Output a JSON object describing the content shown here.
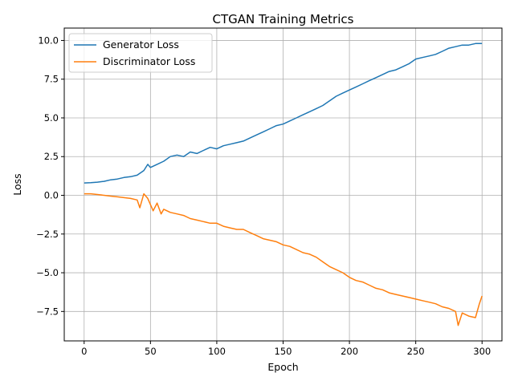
{
  "chart_data": {
    "type": "line",
    "title": "CTGAN Training Metrics",
    "xlabel": "Epoch",
    "ylabel": "Loss",
    "xlim": [
      -15,
      315
    ],
    "ylim": [
      -9.4,
      10.8
    ],
    "xticks": [
      0,
      50,
      100,
      150,
      200,
      250,
      300
    ],
    "yticks": [
      -7.5,
      -5.0,
      -2.5,
      0.0,
      2.5,
      5.0,
      7.5,
      10.0
    ],
    "xtick_labels": [
      "0",
      "50",
      "100",
      "150",
      "200",
      "250",
      "300"
    ],
    "ytick_labels": [
      "−7.5",
      "−5.0",
      "−2.5",
      "0.0",
      "2.5",
      "5.0",
      "7.5",
      "10.0"
    ],
    "grid": true,
    "legend_position": "upper-left",
    "series": [
      {
        "name": "Generator Loss",
        "color": "#1f77b4",
        "x": [
          0,
          5,
          10,
          15,
          20,
          25,
          30,
          35,
          40,
          45,
          48,
          50,
          55,
          60,
          65,
          70,
          75,
          80,
          85,
          90,
          95,
          100,
          105,
          110,
          115,
          120,
          125,
          130,
          135,
          140,
          145,
          150,
          155,
          160,
          165,
          170,
          175,
          180,
          185,
          190,
          195,
          200,
          205,
          210,
          215,
          220,
          225,
          230,
          235,
          240,
          245,
          250,
          255,
          260,
          265,
          270,
          275,
          280,
          285,
          290,
          295,
          300
        ],
        "y": [
          0.8,
          0.82,
          0.85,
          0.9,
          1.0,
          1.05,
          1.15,
          1.2,
          1.3,
          1.6,
          2.0,
          1.8,
          2.0,
          2.2,
          2.5,
          2.6,
          2.5,
          2.8,
          2.7,
          2.9,
          3.1,
          3.0,
          3.2,
          3.3,
          3.4,
          3.5,
          3.7,
          3.9,
          4.1,
          4.3,
          4.5,
          4.6,
          4.8,
          5.0,
          5.2,
          5.4,
          5.6,
          5.8,
          6.1,
          6.4,
          6.6,
          6.8,
          7.0,
          7.2,
          7.4,
          7.6,
          7.8,
          8.0,
          8.1,
          8.3,
          8.5,
          8.8,
          8.9,
          9.0,
          9.1,
          9.3,
          9.5,
          9.6,
          9.7,
          9.7,
          9.8,
          9.8
        ]
      },
      {
        "name": "Discriminator Loss",
        "color": "#ff7f0e",
        "x": [
          0,
          5,
          10,
          15,
          20,
          25,
          30,
          35,
          40,
          42,
          45,
          48,
          50,
          52,
          55,
          58,
          60,
          65,
          70,
          75,
          80,
          85,
          90,
          95,
          100,
          105,
          110,
          115,
          120,
          125,
          130,
          135,
          140,
          145,
          150,
          155,
          160,
          165,
          170,
          175,
          180,
          185,
          190,
          195,
          200,
          205,
          210,
          215,
          220,
          225,
          230,
          235,
          240,
          245,
          250,
          255,
          260,
          265,
          270,
          275,
          280,
          282,
          285,
          290,
          295,
          298,
          300
        ],
        "y": [
          0.1,
          0.1,
          0.05,
          0.0,
          -0.05,
          -0.1,
          -0.15,
          -0.2,
          -0.3,
          -0.8,
          0.1,
          -0.2,
          -0.6,
          -1.0,
          -0.5,
          -1.2,
          -0.9,
          -1.1,
          -1.2,
          -1.3,
          -1.5,
          -1.6,
          -1.7,
          -1.8,
          -1.8,
          -2.0,
          -2.1,
          -2.2,
          -2.2,
          -2.4,
          -2.6,
          -2.8,
          -2.9,
          -3.0,
          -3.2,
          -3.3,
          -3.5,
          -3.7,
          -3.8,
          -4.0,
          -4.3,
          -4.6,
          -4.8,
          -5.0,
          -5.3,
          -5.5,
          -5.6,
          -5.8,
          -6.0,
          -6.1,
          -6.3,
          -6.4,
          -6.5,
          -6.6,
          -6.7,
          -6.8,
          -6.9,
          -7.0,
          -7.2,
          -7.3,
          -7.5,
          -8.4,
          -7.6,
          -7.8,
          -7.9,
          -7.0,
          -6.5
        ]
      }
    ]
  }
}
